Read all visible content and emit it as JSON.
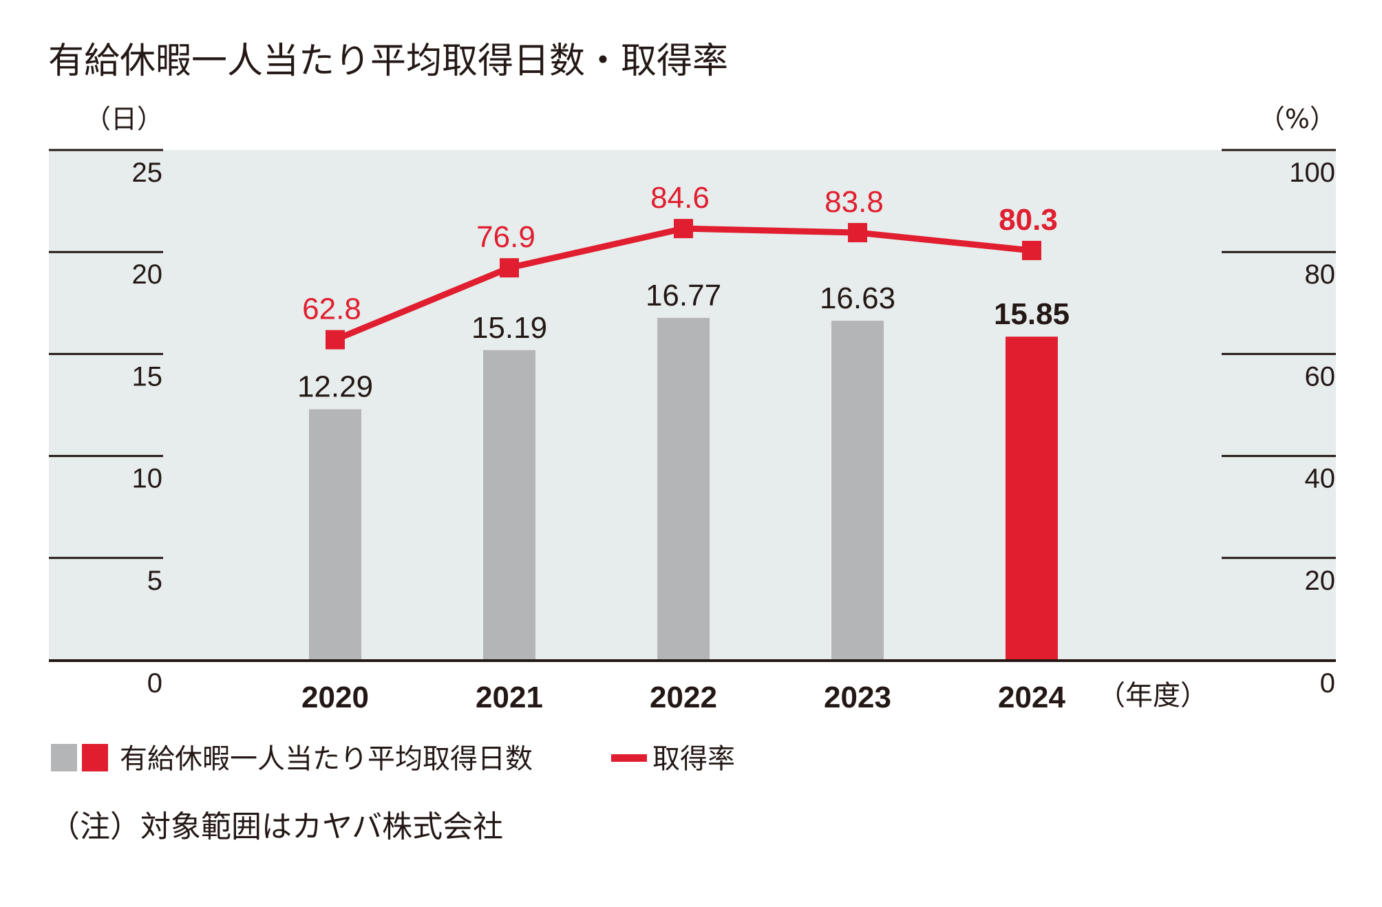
{
  "chart_data": {
    "type": "bar+line",
    "title": "有給休暇一人当たり平均取得日数・取得率",
    "left_unit": "（日）",
    "right_unit": "（%）",
    "x_unit": "（年度）",
    "categories": [
      "2020",
      "2021",
      "2022",
      "2023",
      "2024"
    ],
    "highlight_category": "2024",
    "left_axis": {
      "ylim": [
        0,
        25
      ],
      "ticks": [
        "0",
        "5",
        "10",
        "15",
        "20",
        "25"
      ]
    },
    "right_axis": {
      "ylim": [
        0,
        100
      ],
      "ticks": [
        "0",
        "20",
        "40",
        "60",
        "80",
        "100"
      ]
    },
    "series": [
      {
        "name": "有給休暇一人当たり平均取得日数",
        "type": "bar",
        "axis": "left",
        "values": [
          12.29,
          15.19,
          16.77,
          16.63,
          15.85
        ],
        "labels": [
          "12.29",
          "15.19",
          "16.77",
          "16.63",
          "15.85"
        ]
      },
      {
        "name": "取得率",
        "type": "line",
        "axis": "right",
        "values": [
          62.8,
          76.9,
          84.6,
          83.8,
          80.3
        ],
        "labels": [
          "62.8",
          "76.9",
          "84.6",
          "83.8",
          "80.3"
        ]
      }
    ],
    "colors": {
      "bar": "#b4b5b6",
      "bar_highlight": "#e01e2f",
      "line": "#e01e2f",
      "plot_bg": "#e7ecec",
      "text": "#231815"
    },
    "grid": true,
    "legend_placement": "bottom-left"
  },
  "note": "（注）対象範囲はカヤバ株式会社"
}
